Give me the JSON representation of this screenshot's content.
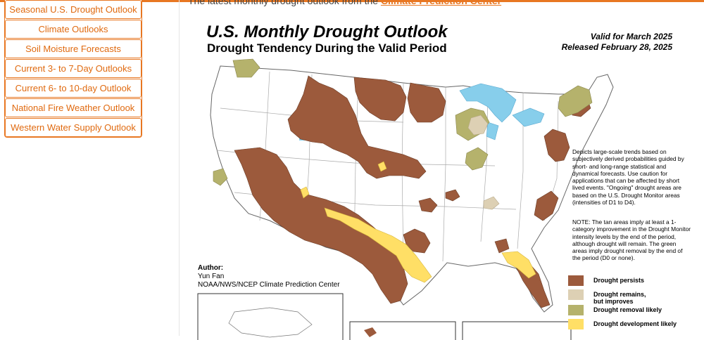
{
  "page": {
    "intro_text": "The latest monthly drought outlook from the",
    "intro_link": "Climate Prediction Center"
  },
  "sidebar": {
    "items": [
      {
        "label": "Seasonal U.S. Drought Outlook"
      },
      {
        "label": "Climate Outlooks"
      },
      {
        "label": "Soil Moisture Forecasts"
      },
      {
        "label": "Current 3- to 7-Day Outlooks"
      },
      {
        "label": "Current 6- to 10-day Outlook"
      },
      {
        "label": "National Fire Weather Outlook"
      },
      {
        "label": "Western Water Supply Outlook"
      }
    ]
  },
  "figure": {
    "title": "U.S. Monthly Drought Outlook",
    "subtitle": "Drought Tendency During the Valid Period",
    "valid_line1": "Valid for March 2025",
    "valid_line2": "Released February 28, 2025",
    "description": "Depicts large-scale trends based on subjectively derived probabilities guided by short- and long-range statistical and dynamical forecasts. Use caution for applications that can be affected by short lived events. \"Ongoing\" drought areas are based on the U.S. Drought Monitor areas (intensities of D1 to D4).",
    "note": "NOTE: The tan areas imply at least a 1-category improvement in the Drought Monitor intensity levels by the end of the period, although drought will remain. The green areas imply drought removal by the end of the period (D0 or none).",
    "author_heading": "Author:",
    "author_name": "Yun Fan",
    "author_org": "NOAA/NWS/NCEP Climate Prediction Center",
    "legend": [
      {
        "label1": "Drought persists",
        "label2": "",
        "color": "#9c5a3c"
      },
      {
        "label1": "Drought remains,",
        "label2": "but improves",
        "color": "#ddd0b4"
      },
      {
        "label1": "Drought removal likely",
        "label2": "",
        "color": "#b5b26c"
      },
      {
        "label1": "Drought development likely",
        "label2": "",
        "color": "#ffdf66"
      }
    ]
  },
  "colors": {
    "accent": "#e87722",
    "persists": "#9c5a3c",
    "improves": "#ddd0b4",
    "removal": "#b5b26c",
    "development": "#ffdf66",
    "water": "#87ceeb"
  }
}
